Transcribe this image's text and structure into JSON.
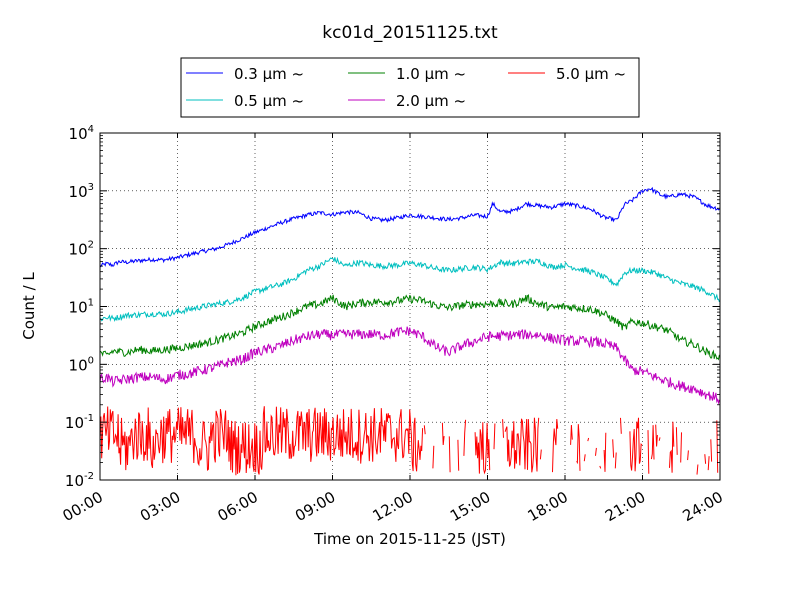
{
  "chart_data": {
    "type": "line",
    "title": "kc01d_20151125.txt",
    "xlabel": "Time on 2015-11-25 (JST)",
    "ylabel": "Count / L",
    "yscale": "log",
    "xlim": [
      0,
      24
    ],
    "ylim": [
      0.01,
      10000
    ],
    "grid": true,
    "legend_position": "top-center",
    "x_tick_labels": [
      "00:00",
      "03:00",
      "06:00",
      "09:00",
      "12:00",
      "15:00",
      "18:00",
      "21:00",
      "24:00"
    ],
    "y_tick_labels": [
      {
        "base": "10",
        "exp": "-2"
      },
      {
        "base": "10",
        "exp": "-1"
      },
      {
        "base": "10",
        "exp": "0"
      },
      {
        "base": "10",
        "exp": "1"
      },
      {
        "base": "10",
        "exp": "2"
      },
      {
        "base": "10",
        "exp": "3"
      },
      {
        "base": "10",
        "exp": "4"
      }
    ],
    "series": [
      {
        "name": "0.3 μm ~",
        "color": "#0000ff",
        "x": [
          0,
          0.25,
          0.5,
          0.75,
          1,
          1.5,
          2,
          2.5,
          3,
          3.5,
          4,
          4.5,
          5,
          5.5,
          6,
          6.5,
          7,
          7.5,
          8,
          8.5,
          9,
          9.5,
          10,
          10.5,
          11,
          11.5,
          12,
          12.5,
          13,
          13.5,
          14,
          14.5,
          15,
          15.2,
          15.5,
          16,
          16.5,
          17,
          17.5,
          18,
          18.5,
          19,
          19.5,
          20,
          20.3,
          20.6,
          21,
          21.3,
          21.7,
          22,
          22.5,
          23,
          23.5,
          24
        ],
        "y": [
          50,
          55,
          52,
          60,
          58,
          62,
          65,
          64,
          70,
          80,
          90,
          100,
          120,
          150,
          190,
          230,
          280,
          330,
          380,
          420,
          390,
          430,
          420,
          330,
          310,
          340,
          380,
          360,
          340,
          320,
          340,
          380,
          360,
          600,
          430,
          450,
          600,
          550,
          520,
          600,
          550,
          480,
          350,
          310,
          580,
          680,
          1000,
          1100,
          850,
          780,
          880,
          780,
          560,
          480
        ]
      },
      {
        "name": "0.5 μm ~",
        "color": "#00bfbf",
        "x": [
          0,
          0.25,
          0.5,
          1,
          1.5,
          2,
          2.5,
          3,
          3.5,
          4,
          4.5,
          5,
          5.5,
          6,
          6.5,
          7,
          7.5,
          8,
          8.5,
          9,
          9.5,
          10,
          10.5,
          11,
          11.5,
          12,
          12.5,
          13,
          13.5,
          14,
          14.5,
          15,
          15.5,
          16,
          16.5,
          17,
          17.5,
          18,
          18.5,
          19,
          19.5,
          20,
          20.3,
          20.6,
          21,
          21.5,
          22,
          22.5,
          23,
          23.5,
          24
        ],
        "y": [
          6,
          6.5,
          6.2,
          7,
          7.2,
          7.5,
          7.4,
          8,
          9,
          10,
          11,
          12,
          14,
          18,
          21,
          24,
          30,
          42,
          50,
          68,
          50,
          58,
          52,
          50,
          52,
          56,
          52,
          45,
          42,
          45,
          48,
          44,
          58,
          55,
          60,
          60,
          48,
          52,
          45,
          40,
          32,
          24,
          38,
          42,
          42,
          38,
          30,
          25,
          22,
          18,
          13
        ]
      },
      {
        "name": "1.0 μm ~",
        "color": "#008000",
        "x": [
          0,
          0.25,
          0.5,
          1,
          1.5,
          2,
          2.5,
          3,
          3.5,
          4,
          4.5,
          5,
          5.5,
          6,
          6.5,
          7,
          7.5,
          8,
          8.5,
          9,
          9.5,
          10,
          10.5,
          11,
          11.5,
          12,
          12.5,
          13,
          13.5,
          14,
          14.5,
          15,
          15.5,
          16,
          16.5,
          17,
          17.5,
          18,
          18.5,
          19,
          19.5,
          20,
          20.3,
          20.6,
          21,
          21.5,
          22,
          22.5,
          23,
          23.5,
          24
        ],
        "y": [
          1.6,
          1.4,
          1.7,
          1.6,
          1.8,
          1.7,
          1.8,
          1.9,
          2.1,
          2.3,
          2.6,
          3,
          3.5,
          4.5,
          5.5,
          6.5,
          8,
          10,
          11,
          14,
          10,
          11.5,
          12,
          12,
          12.5,
          13.5,
          12.5,
          10.5,
          9.5,
          10.5,
          11,
          11,
          11.5,
          11,
          14,
          11,
          9.5,
          10,
          9.5,
          9,
          7.5,
          5.5,
          4.2,
          5.5,
          5.2,
          4.5,
          3.8,
          2.6,
          2.2,
          1.6,
          1.3
        ]
      },
      {
        "name": "2.0 μm ~",
        "color": "#bf00bf",
        "x": [
          0,
          0.25,
          0.5,
          1,
          1.5,
          2,
          2.5,
          3,
          3.5,
          4,
          4.5,
          5,
          5.5,
          6,
          6.5,
          7,
          7.5,
          8,
          8.5,
          9,
          9.5,
          10,
          10.5,
          11,
          11.5,
          12,
          12.5,
          13,
          13.5,
          14,
          14.5,
          15,
          15.5,
          16,
          16.5,
          17,
          17.5,
          18,
          18.5,
          19,
          19.5,
          20,
          20.3,
          20.6,
          21,
          21.5,
          22,
          22.5,
          23,
          23.5,
          24
        ],
        "y": [
          0.55,
          0.6,
          0.5,
          0.55,
          0.6,
          0.6,
          0.55,
          0.65,
          0.7,
          0.8,
          0.9,
          1.1,
          1.2,
          1.6,
          1.8,
          2.1,
          2.6,
          3,
          3.3,
          3.2,
          3.3,
          3.3,
          3.3,
          3.2,
          3.6,
          3.8,
          3,
          2,
          1.6,
          2.1,
          2.5,
          3,
          3.1,
          3.2,
          3.3,
          3.2,
          2.8,
          2.6,
          2.5,
          2.5,
          2.3,
          1.9,
          1.2,
          0.8,
          0.75,
          0.6,
          0.5,
          0.42,
          0.38,
          0.3,
          0.25
        ]
      },
      {
        "name": "5.0 μm ~",
        "color": "#ff0000",
        "x": [
          0,
          0.5,
          1,
          1.5,
          2,
          2.5,
          3,
          3.5,
          4,
          4.5,
          5,
          5.5,
          6,
          6.5,
          7,
          7.5,
          8,
          8.5,
          9,
          9.5,
          10,
          10.5,
          11,
          11.5,
          12,
          12.5,
          13,
          13.5,
          14,
          14.5,
          15,
          15.5,
          16,
          16.5,
          17,
          17.5,
          18,
          18.5,
          19,
          19.5,
          20,
          20.5,
          21,
          21.5,
          22,
          22.5,
          23,
          23.5,
          24
        ],
        "y": [
          0.03,
          0.04,
          0.02,
          0.05,
          0.025,
          0.04,
          0.03,
          0.05,
          0.02,
          0.04,
          0.03,
          0.025,
          0.02,
          0.04,
          0.05,
          0.03,
          0.04,
          0.06,
          0.05,
          0.03,
          0.04,
          0.05,
          0.03,
          0.04,
          0.03,
          0.02,
          0.015,
          0.02,
          0.015,
          0.02,
          0.02,
          0.015,
          0.03,
          0.02,
          0.02,
          0.015,
          0.02,
          0.015,
          0.02,
          0.015,
          0.015,
          0.02,
          0.02,
          0.015,
          0.015,
          0.02,
          0.015,
          0.015,
          0.015
        ]
      }
    ]
  }
}
